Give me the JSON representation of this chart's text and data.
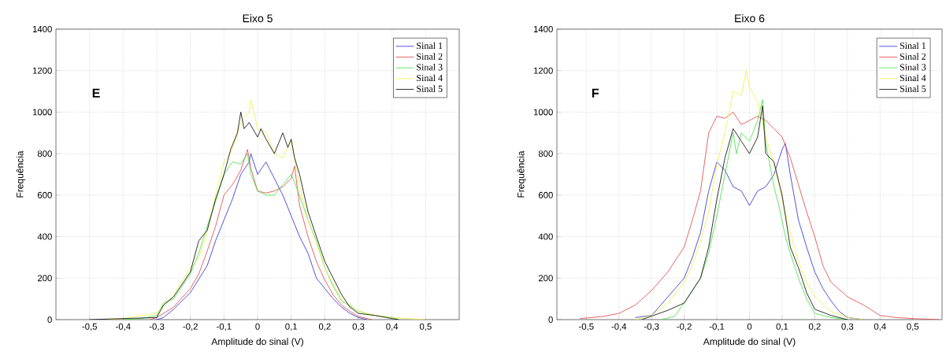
{
  "chart_data": [
    {
      "type": "line",
      "title": "Eixo 5",
      "xlabel": "Amplitude do sinal (V)",
      "ylabel": "Frequência",
      "annotations": [
        "E"
      ],
      "xlim": [
        -0.6,
        0.6
      ],
      "ylim": [
        0,
        1400
      ],
      "xticks": [
        {
          "value": -0.5,
          "label": "-0,5"
        },
        {
          "value": -0.4,
          "label": "-0,4"
        },
        {
          "value": -0.3,
          "label": "-0,3"
        },
        {
          "value": -0.2,
          "label": "-0,2"
        },
        {
          "value": -0.1,
          "label": "-0,1"
        },
        0,
        {
          "value": 0.1,
          "label": "0,1"
        },
        {
          "value": 0.2,
          "label": "0,2"
        },
        {
          "value": 0.3,
          "label": "0,3"
        },
        {
          "value": 0.4,
          "label": "0,4"
        },
        {
          "value": 0.5,
          "label": "0,5"
        }
      ],
      "yticks": [
        0,
        200,
        400,
        600,
        800,
        1000,
        1200,
        1400
      ],
      "grid": true,
      "legend": "top right",
      "marker": "none",
      "line_style": "solid",
      "series": [
        {
          "name": "Sinal  1",
          "color": "#2828d0",
          "x": [
            -0.3,
            -0.28,
            -0.25,
            -0.2,
            -0.15,
            -0.125,
            -0.1,
            -0.075,
            -0.05,
            -0.025,
            -0.02,
            0,
            0.025,
            0.05,
            0.075,
            0.1,
            0.125,
            0.15,
            0.175,
            0.2,
            0.225,
            0.25,
            0.275,
            0.3,
            0.325
          ],
          "values": [
            0,
            10,
            50,
            130,
            260,
            380,
            480,
            580,
            700,
            760,
            800,
            700,
            760,
            680,
            600,
            500,
            400,
            320,
            200,
            150,
            100,
            60,
            30,
            10,
            0
          ]
        },
        {
          "name": "Sinal  2",
          "color": "#e04040",
          "x": [
            -0.32,
            -0.3,
            -0.25,
            -0.2,
            -0.175,
            -0.15,
            -0.125,
            -0.1,
            -0.075,
            -0.05,
            -0.03,
            -0.02,
            0,
            0.025,
            0.05,
            0.075,
            0.1,
            0.11,
            0.125,
            0.15,
            0.175,
            0.2,
            0.225,
            0.25,
            0.275,
            0.3,
            0.34
          ],
          "values": [
            0,
            10,
            60,
            150,
            220,
            330,
            450,
            600,
            650,
            720,
            820,
            730,
            620,
            610,
            620,
            640,
            680,
            740,
            550,
            400,
            280,
            190,
            120,
            70,
            40,
            15,
            0
          ]
        },
        {
          "name": "Sinal  3",
          "color": "#40e040",
          "x": [
            -0.4,
            -0.35,
            -0.3,
            -0.28,
            -0.25,
            -0.2,
            -0.175,
            -0.15,
            -0.125,
            -0.1,
            -0.075,
            -0.05,
            -0.03,
            -0.02,
            0,
            0.025,
            0.05,
            0.075,
            0.1,
            0.12,
            0.15,
            0.175,
            0.2,
            0.225,
            0.25,
            0.3,
            0.35,
            0.4,
            0.42
          ],
          "values": [
            0,
            5,
            20,
            80,
            100,
            220,
            320,
            450,
            570,
            700,
            760,
            750,
            800,
            700,
            620,
            600,
            600,
            650,
            700,
            620,
            480,
            380,
            250,
            160,
            90,
            40,
            20,
            10,
            0
          ]
        },
        {
          "name": "Sinal  4",
          "color": "#f0f040",
          "x": [
            -0.45,
            -0.4,
            -0.3,
            -0.25,
            -0.2,
            -0.175,
            -0.15,
            -0.125,
            -0.1,
            -0.075,
            -0.05,
            -0.025,
            -0.02,
            0,
            0.025,
            0.05,
            0.075,
            0.1,
            0.125,
            0.15,
            0.175,
            0.2,
            0.225,
            0.25,
            0.3,
            0.35,
            0.4,
            0.45,
            0.5
          ],
          "values": [
            0,
            5,
            30,
            120,
            250,
            300,
            420,
            600,
            760,
            820,
            950,
            1000,
            1060,
            920,
            900,
            800,
            780,
            860,
            650,
            480,
            370,
            250,
            170,
            100,
            40,
            20,
            10,
            5,
            0
          ]
        },
        {
          "name": "Sinal  5",
          "color": "#000000",
          "x": [
            -0.5,
            -0.3,
            -0.28,
            -0.25,
            -0.2,
            -0.175,
            -0.15,
            -0.125,
            -0.1,
            -0.08,
            -0.06,
            -0.05,
            -0.04,
            -0.025,
            0,
            0.01,
            0.025,
            0.05,
            0.075,
            0.09,
            0.1,
            0.11,
            0.125,
            0.15,
            0.175,
            0.2,
            0.225,
            0.25,
            0.275,
            0.3,
            0.35,
            0.4,
            0.42
          ],
          "values": [
            0,
            10,
            70,
            110,
            230,
            380,
            430,
            580,
            700,
            820,
            900,
            1000,
            920,
            950,
            880,
            920,
            870,
            800,
            900,
            830,
            870,
            780,
            700,
            520,
            400,
            280,
            200,
            120,
            60,
            30,
            20,
            5,
            0
          ]
        }
      ]
    },
    {
      "type": "line",
      "title": "Eixo 6",
      "xlabel": "Amplitude do sinal (V)",
      "ylabel": "Frequência",
      "annotations": [
        "F"
      ],
      "xlim": [
        -0.59,
        0.59
      ],
      "ylim": [
        0,
        1400
      ],
      "xticks": [
        {
          "value": -0.5,
          "label": "-0,5"
        },
        {
          "value": -0.4,
          "label": "-0,4"
        },
        {
          "value": -0.3,
          "label": "-0,3"
        },
        {
          "value": -0.2,
          "label": "-0,2"
        },
        {
          "value": -0.1,
          "label": "-0,1"
        },
        0,
        {
          "value": 0.1,
          "label": "0,1"
        },
        {
          "value": 0.2,
          "label": "0,2"
        },
        {
          "value": 0.3,
          "label": "0,3"
        },
        {
          "value": 0.4,
          "label": "0,4"
        },
        {
          "value": 0.5,
          "label": "0,5"
        }
      ],
      "yticks": [
        0,
        200,
        400,
        600,
        800,
        1000,
        1200,
        1400
      ],
      "grid": true,
      "legend": "top right",
      "marker": "none",
      "line_style": "solid",
      "series": [
        {
          "name": "Sinal  1",
          "color": "#2828d0",
          "x": [
            -0.35,
            -0.3,
            -0.25,
            -0.2,
            -0.175,
            -0.15,
            -0.125,
            -0.1,
            -0.075,
            -0.05,
            -0.025,
            0,
            0.025,
            0.05,
            0.075,
            0.1,
            0.11,
            0.125,
            0.15,
            0.175,
            0.2,
            0.225,
            0.25,
            0.275,
            0.3,
            0.35
          ],
          "values": [
            10,
            20,
            110,
            200,
            300,
            420,
            620,
            760,
            720,
            640,
            620,
            550,
            620,
            640,
            700,
            820,
            850,
            700,
            480,
            350,
            230,
            150,
            90,
            40,
            10,
            0
          ]
        },
        {
          "name": "Sinal  2",
          "color": "#e04040",
          "x": [
            -0.52,
            -0.45,
            -0.4,
            -0.35,
            -0.3,
            -0.25,
            -0.2,
            -0.175,
            -0.15,
            -0.125,
            -0.1,
            -0.075,
            -0.05,
            -0.025,
            0,
            0.025,
            0.05,
            0.075,
            0.1,
            0.125,
            0.15,
            0.175,
            0.2,
            0.225,
            0.25,
            0.3,
            0.35,
            0.4,
            0.45,
            0.5,
            0.58
          ],
          "values": [
            5,
            15,
            30,
            70,
            140,
            230,
            350,
            480,
            620,
            900,
            980,
            970,
            1000,
            940,
            960,
            980,
            960,
            920,
            880,
            780,
            650,
            520,
            400,
            260,
            180,
            110,
            70,
            20,
            10,
            5,
            0
          ]
        },
        {
          "name": "Sinal  3",
          "color": "#40e040",
          "x": [
            -0.27,
            -0.23,
            -0.2,
            -0.15,
            -0.125,
            -0.1,
            -0.075,
            -0.05,
            -0.04,
            -0.025,
            0,
            0.025,
            0.04,
            0.05,
            0.075,
            0.09,
            0.11,
            0.125,
            0.15,
            0.175,
            0.2,
            0.25,
            0.3
          ],
          "values": [
            0,
            15,
            80,
            200,
            320,
            500,
            700,
            900,
            800,
            900,
            860,
            960,
            1060,
            850,
            640,
            550,
            400,
            320,
            200,
            100,
            30,
            10,
            0
          ]
        },
        {
          "name": "Sinal  4",
          "color": "#f0f040",
          "x": [
            -0.35,
            -0.3,
            -0.25,
            -0.2,
            -0.175,
            -0.15,
            -0.125,
            -0.1,
            -0.075,
            -0.05,
            -0.025,
            -0.01,
            0,
            0.025,
            0.05,
            0.075,
            0.1,
            0.125,
            0.15,
            0.175,
            0.2,
            0.25,
            0.3,
            0.35
          ],
          "values": [
            0,
            20,
            80,
            180,
            260,
            380,
            520,
            750,
            900,
            1100,
            1080,
            1200,
            1120,
            1050,
            880,
            750,
            580,
            420,
            280,
            180,
            110,
            40,
            10,
            0
          ]
        },
        {
          "name": "Sinal  5",
          "color": "#000000",
          "x": [
            -0.33,
            -0.25,
            -0.2,
            -0.15,
            -0.125,
            -0.1,
            -0.075,
            -0.05,
            -0.025,
            0,
            0.025,
            0.04,
            0.05,
            0.075,
            0.1,
            0.125,
            0.15,
            0.175,
            0.2,
            0.25,
            0.3
          ],
          "values": [
            0,
            45,
            80,
            200,
            350,
            580,
            780,
            920,
            860,
            800,
            880,
            1030,
            800,
            760,
            600,
            350,
            250,
            130,
            50,
            20,
            0
          ]
        }
      ]
    }
  ]
}
